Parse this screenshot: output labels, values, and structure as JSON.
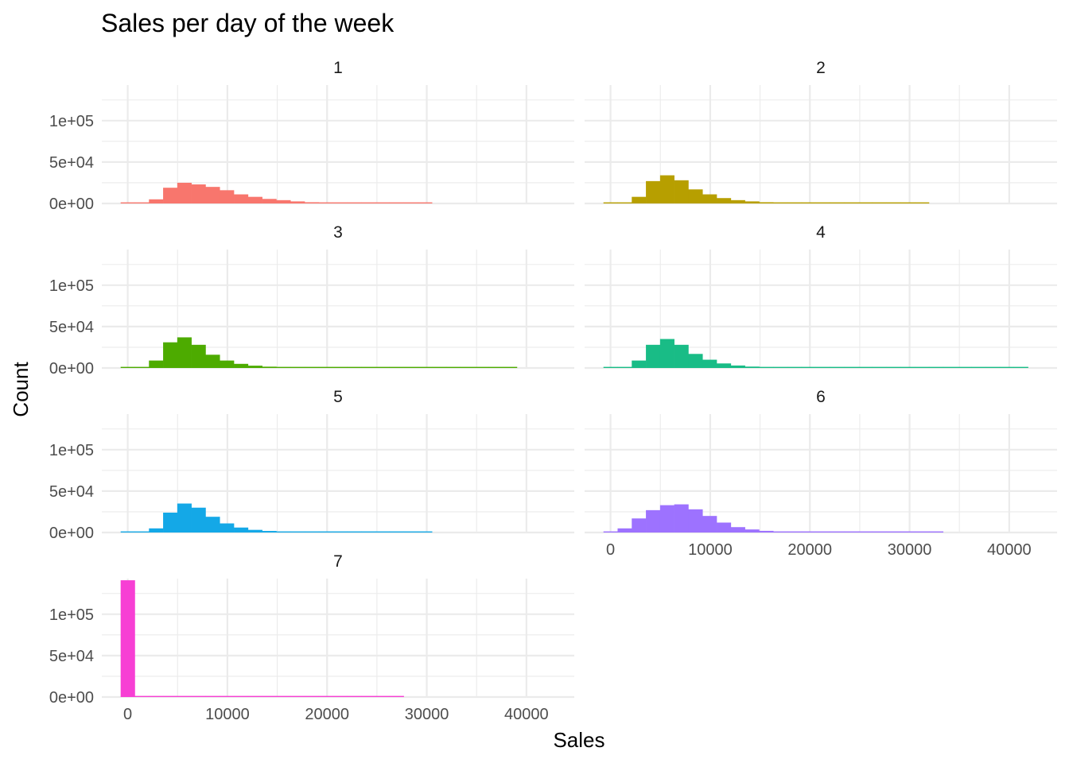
{
  "chart_data": {
    "type": "bar",
    "title": "Sales per day of the week",
    "xlabel": "Sales",
    "ylabel": "Count",
    "grid": true,
    "legend": "none",
    "xlim": [
      -2600,
      44800
    ],
    "ylim": [
      0,
      143000
    ],
    "x_ticks": [
      0,
      10000,
      20000,
      30000,
      40000
    ],
    "x_tick_labels": [
      "0",
      "10000",
      "20000",
      "30000",
      "40000"
    ],
    "y_ticks": [
      0,
      50000,
      100000
    ],
    "y_tick_labels": [
      "0e+00",
      "5e+04",
      "1e+05"
    ],
    "bin_width": 1420,
    "bin_start": -710,
    "panels": [
      {
        "label": "1",
        "color": "#F8766D",
        "counts": [
          500,
          700,
          5000,
          19000,
          25000,
          23000,
          20000,
          16000,
          11000,
          8000,
          5500,
          4000,
          2500,
          1500,
          1000,
          700,
          500,
          300,
          200,
          200,
          150,
          100,
          0,
          0,
          0,
          0,
          0,
          0,
          0,
          0,
          0
        ]
      },
      {
        "label": "2",
        "color": "#B79F00",
        "counts": [
          600,
          800,
          8000,
          27000,
          34000,
          28000,
          17000,
          11000,
          6500,
          4000,
          2500,
          1500,
          800,
          500,
          300,
          200,
          150,
          100,
          80,
          50,
          30,
          20,
          10,
          0,
          0,
          0,
          0,
          0,
          0,
          0,
          0
        ]
      },
      {
        "label": "3",
        "color": "#4DAB00",
        "counts": [
          500,
          700,
          9000,
          31000,
          37000,
          28000,
          16000,
          9000,
          5000,
          2800,
          1600,
          900,
          500,
          300,
          200,
          150,
          100,
          80,
          60,
          50,
          40,
          30,
          20,
          20,
          15,
          10,
          10,
          10,
          0,
          0,
          0
        ]
      },
      {
        "label": "4",
        "color": "#19BC86",
        "counts": [
          600,
          800,
          9000,
          28000,
          35000,
          28000,
          17000,
          10000,
          5500,
          3000,
          1700,
          900,
          500,
          300,
          200,
          150,
          100,
          80,
          60,
          50,
          40,
          30,
          25,
          20,
          15,
          10,
          10,
          10,
          10,
          10,
          0
        ]
      },
      {
        "label": "5",
        "color": "#14A8E7",
        "counts": [
          400,
          600,
          5000,
          24000,
          35000,
          30000,
          19000,
          11000,
          6000,
          3200,
          1900,
          1200,
          800,
          500,
          300,
          200,
          150,
          100,
          50,
          30,
          20,
          10,
          0,
          0,
          0,
          0,
          0,
          0,
          0,
          0,
          0
        ]
      },
      {
        "label": "6",
        "color": "#9D72FF",
        "counts": [
          500,
          5000,
          17000,
          27000,
          33000,
          34000,
          28000,
          20000,
          12000,
          6500,
          3700,
          2000,
          1300,
          900,
          600,
          400,
          300,
          200,
          150,
          100,
          60,
          40,
          20,
          10,
          0,
          0,
          0,
          0,
          0,
          0,
          0
        ]
      },
      {
        "label": "7",
        "color": "#F73FD4",
        "counts": [
          141000,
          600,
          500,
          400,
          350,
          300,
          250,
          200,
          150,
          120,
          100,
          80,
          60,
          40,
          30,
          20,
          10,
          10,
          5,
          5,
          0,
          0,
          0,
          0,
          0,
          0,
          0,
          0,
          0,
          0,
          0
        ]
      }
    ]
  }
}
